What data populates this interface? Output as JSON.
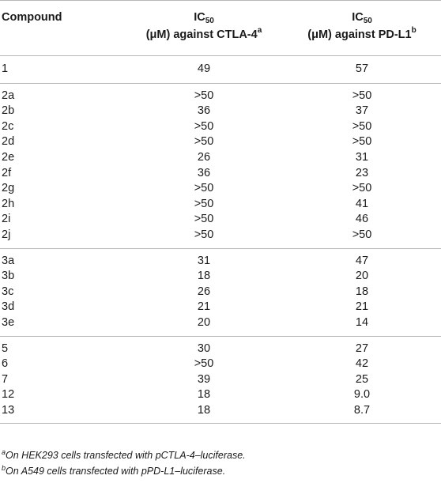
{
  "table": {
    "headers": {
      "compound": "Compound",
      "col2": {
        "ic": "IC",
        "sub": "50",
        "line2": "(μM) against CTLA-4",
        "sup": "a"
      },
      "col3": {
        "ic": "IC",
        "sub": "50",
        "line2": "(μM) against PD-L1",
        "sup": "b"
      }
    },
    "groups": [
      [
        {
          "compound": "1",
          "ctla4": "49",
          "pdl1": "57"
        }
      ],
      [
        {
          "compound": "2a",
          "ctla4": ">50",
          "pdl1": ">50"
        },
        {
          "compound": "2b",
          "ctla4": "36",
          "pdl1": "37"
        },
        {
          "compound": "2c",
          "ctla4": ">50",
          "pdl1": ">50"
        },
        {
          "compound": "2d",
          "ctla4": ">50",
          "pdl1": ">50"
        },
        {
          "compound": "2e",
          "ctla4": "26",
          "pdl1": "31"
        },
        {
          "compound": "2f",
          "ctla4": "36",
          "pdl1": "23"
        },
        {
          "compound": "2g",
          "ctla4": ">50",
          "pdl1": ">50"
        },
        {
          "compound": "2h",
          "ctla4": ">50",
          "pdl1": "41"
        },
        {
          "compound": "2i",
          "ctla4": ">50",
          "pdl1": "46"
        },
        {
          "compound": "2j",
          "ctla4": ">50",
          "pdl1": ">50"
        }
      ],
      [
        {
          "compound": "3a",
          "ctla4": "31",
          "pdl1": "47"
        },
        {
          "compound": "3b",
          "ctla4": "18",
          "pdl1": "20"
        },
        {
          "compound": "3c",
          "ctla4": "26",
          "pdl1": "18"
        },
        {
          "compound": "3d",
          "ctla4": "21",
          "pdl1": "21"
        },
        {
          "compound": "3e",
          "ctla4": "20",
          "pdl1": "14"
        }
      ],
      [
        {
          "compound": "5",
          "ctla4": "30",
          "pdl1": "27"
        },
        {
          "compound": "6",
          "ctla4": ">50",
          "pdl1": "42"
        },
        {
          "compound": "7",
          "ctla4": "39",
          "pdl1": "25"
        },
        {
          "compound": "12",
          "ctla4": "18",
          "pdl1": "9.0"
        },
        {
          "compound": "13",
          "ctla4": "18",
          "pdl1": "8.7"
        }
      ]
    ]
  },
  "footnotes": [
    {
      "mark": "a",
      "text": "On HEK293 cells transfected with pCTLA-4–luciferase."
    },
    {
      "mark": "b",
      "text": "On A549 cells transfected with pPD-L1–luciferase."
    }
  ]
}
